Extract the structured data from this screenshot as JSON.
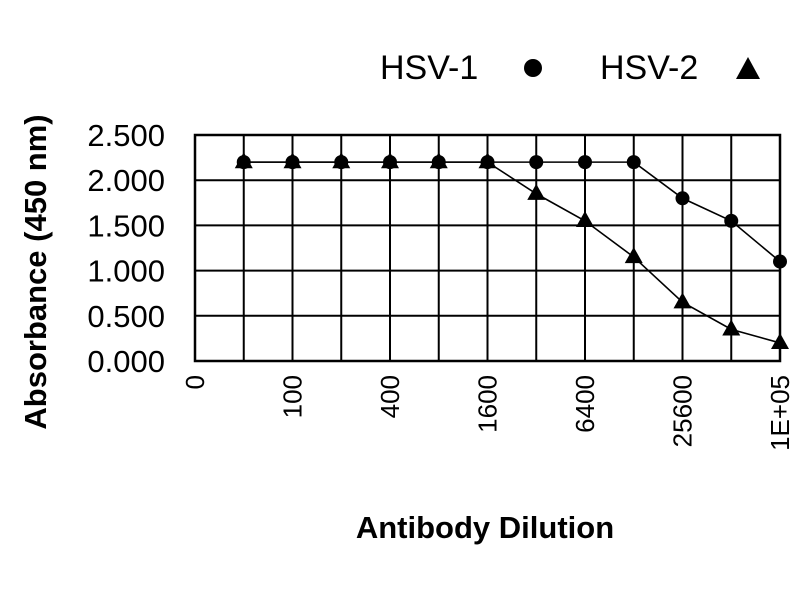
{
  "chart_data": {
    "type": "line",
    "xlabel": "Antibody Dilution",
    "ylabel": "Absorbance (450 nm)",
    "x_tick_labels": [
      "0",
      "",
      "100",
      "",
      "400",
      "",
      "1600",
      "",
      "6400",
      "",
      "25600",
      "",
      "1E+05"
    ],
    "y_tick_labels": [
      "0.000",
      "0.500",
      "1.000",
      "1.500",
      "2.000",
      "2.500"
    ],
    "ylim": [
      0,
      2.5
    ],
    "x_positions": [
      1,
      2,
      3,
      4,
      5,
      6,
      7,
      8,
      9,
      10,
      11,
      12
    ],
    "grid": true,
    "legend_position": "top-right",
    "series": [
      {
        "name": "HSV-1",
        "marker": "circle",
        "values": [
          2.2,
          2.2,
          2.2,
          2.2,
          2.2,
          2.2,
          2.2,
          2.2,
          2.2,
          1.8,
          1.55,
          1.1
        ]
      },
      {
        "name": "HSV-2",
        "marker": "triangle",
        "values": [
          2.2,
          2.2,
          2.2,
          2.2,
          2.2,
          2.2,
          1.85,
          1.55,
          1.15,
          0.65,
          0.35,
          0.2
        ]
      }
    ]
  }
}
